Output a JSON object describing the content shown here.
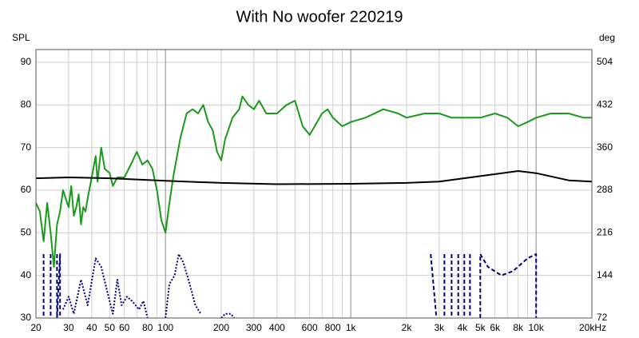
{
  "chart_data": {
    "type": "line",
    "title": "With No woofer 220219",
    "ylabel": "SPL",
    "y2label": "deg",
    "xscale": "log",
    "xlim": [
      20,
      20000
    ],
    "ylim": [
      30,
      93
    ],
    "y2lim": [
      72,
      525.6
    ],
    "xticks": [
      20,
      30,
      40,
      50,
      60,
      80,
      100,
      200,
      300,
      400,
      600,
      800,
      {
        "value": 1000,
        "label": "1k"
      },
      {
        "value": 2000,
        "label": "2k"
      },
      {
        "value": 3000,
        "label": "3k"
      },
      {
        "value": 4000,
        "label": "4k"
      },
      {
        "value": 5000,
        "label": "5k"
      },
      {
        "value": 6000,
        "label": "6k"
      },
      {
        "value": 8000,
        "label": "8k"
      },
      {
        "value": 10000,
        "label": "10k"
      },
      {
        "value": 20000,
        "label": "20kHz"
      }
    ],
    "xgrid": [
      30,
      40,
      50,
      60,
      70,
      80,
      90,
      200,
      300,
      400,
      500,
      600,
      700,
      800,
      900,
      2000,
      3000,
      4000,
      5000,
      6000,
      7000,
      8000,
      9000
    ],
    "xmajor": [
      100,
      1000,
      10000
    ],
    "yticks": [
      30,
      40,
      50,
      60,
      70,
      80,
      90
    ],
    "y2ticks": [
      72,
      144,
      216,
      288,
      360,
      432,
      504
    ],
    "grid": true,
    "series": [
      {
        "color": "#1a9a1a",
        "style": "solid",
        "width": 2,
        "x": [
          20,
          21,
          22,
          23,
          24,
          25,
          26,
          27,
          28,
          29,
          30,
          31,
          32,
          33,
          34,
          35,
          36,
          37,
          38,
          40,
          42,
          43,
          45,
          47,
          50,
          52,
          55,
          60,
          65,
          70,
          75,
          80,
          85,
          90,
          95,
          100,
          105,
          110,
          120,
          130,
          140,
          150,
          160,
          170,
          180,
          190,
          200,
          210,
          230,
          250,
          260,
          280,
          300,
          320,
          350,
          400,
          450,
          500,
          550,
          600,
          700,
          750,
          800,
          900,
          1000,
          1200,
          1500,
          1800,
          2000,
          2500,
          3000,
          3500,
          4000,
          5000,
          6000,
          7000,
          8000,
          9000,
          10000,
          12000,
          15000,
          18000,
          20000
        ],
        "values": [
          57,
          55,
          48,
          57,
          50,
          42,
          52,
          55,
          60,
          58,
          56,
          61,
          54,
          56,
          59,
          52,
          56,
          55,
          58,
          63,
          68,
          62,
          70,
          65,
          64,
          61,
          63,
          63,
          66,
          69,
          66,
          67,
          65,
          60,
          53,
          50,
          57,
          63,
          72,
          78,
          79,
          78,
          80,
          76,
          74,
          69,
          67,
          72,
          77,
          79,
          82,
          80,
          79,
          81,
          78,
          78,
          80,
          81,
          75,
          73,
          78,
          79,
          77,
          75,
          76,
          77,
          79,
          78,
          77,
          78,
          78,
          77,
          77,
          77,
          78,
          77,
          75,
          76,
          77,
          78,
          78,
          77,
          77
        ]
      },
      {
        "color": "#000000",
        "style": "solid",
        "width": 2,
        "x": [
          20,
          30,
          50,
          100,
          200,
          400,
          1000,
          2000,
          3000,
          5000,
          8000,
          10000,
          15000,
          20000
        ],
        "values": [
          62.8,
          63,
          62.8,
          62.2,
          61.7,
          61.4,
          61.5,
          61.7,
          62,
          63.3,
          64.5,
          64,
          62.3,
          62
        ]
      },
      {
        "color": "#00007f",
        "style": "dotted",
        "width": 2,
        "x": [
          28,
          30,
          32,
          35,
          38,
          42,
          45,
          48,
          52,
          55,
          58,
          62,
          66,
          72,
          76,
          80,
          90,
          100,
          105,
          112,
          118,
          125,
          135,
          145,
          155,
          190,
          200,
          210,
          225,
          235
        ],
        "values": [
          32,
          35,
          31,
          39,
          33,
          44,
          42,
          37,
          31,
          39,
          33,
          35,
          34,
          32,
          34,
          30,
          null,
          30,
          38,
          40,
          45,
          43,
          38,
          33,
          31,
          null,
          30,
          31,
          31,
          30
        ]
      },
      {
        "color": "#00007f",
        "style": "dashed",
        "width": 2,
        "x": [
          22,
          22,
          23,
          24,
          24,
          25,
          26,
          26,
          27,
          27,
          2000,
          2700,
          2900,
          3000,
          3200,
          3200,
          3300,
          3500,
          3500,
          3600,
          3800,
          3800,
          3900,
          4100,
          4100,
          4200,
          4400,
          4400,
          4500,
          5000,
          5000,
          5500,
          6500,
          7500,
          9000,
          10000,
          10000
        ],
        "values": [
          45,
          30,
          null,
          45,
          30,
          null,
          45,
          30,
          45,
          30,
          null,
          45,
          30,
          null,
          45,
          30,
          null,
          45,
          30,
          null,
          45,
          30,
          null,
          45,
          30,
          null,
          45,
          30,
          null,
          30,
          45,
          42,
          40,
          41,
          44,
          45,
          30
        ]
      }
    ]
  }
}
